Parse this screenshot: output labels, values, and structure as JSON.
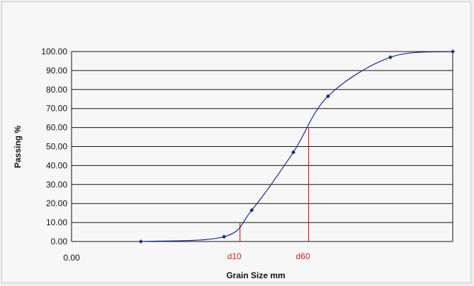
{
  "chart_data": {
    "type": "line",
    "xlabel": "Grain Size mm",
    "ylabel": "Passing %",
    "x_axis": {
      "tick_label": "0.00",
      "scale": "categorical-positions",
      "grid": false
    },
    "ylim": [
      0,
      100
    ],
    "y_ticks": [
      "0.00",
      "10.00",
      "20.00",
      "30.00",
      "40.00",
      "50.00",
      "60.00",
      "70.00",
      "80.00",
      "90.00",
      "100.00"
    ],
    "grid": true,
    "series": [
      {
        "color": "#1a2a8a",
        "marker": "diamond",
        "points": [
          {
            "x": 1,
            "y": 0.0
          },
          {
            "x": 2.2,
            "y": 2.5
          },
          {
            "x": 2.6,
            "y": 16.5
          },
          {
            "x": 3.2,
            "y": 47.0
          },
          {
            "x": 3.7,
            "y": 76.5
          },
          {
            "x": 4.6,
            "y": 97.0
          },
          {
            "x": 5.5,
            "y": 100.0
          }
        ]
      }
    ],
    "reference_lines": [
      {
        "label": "d10",
        "y": 10,
        "x": 2.43,
        "color": "#d42020"
      },
      {
        "label": "d60",
        "y": 60,
        "x": 3.42,
        "color": "#d42020"
      }
    ],
    "x_domain": [
      0,
      5.5
    ]
  }
}
